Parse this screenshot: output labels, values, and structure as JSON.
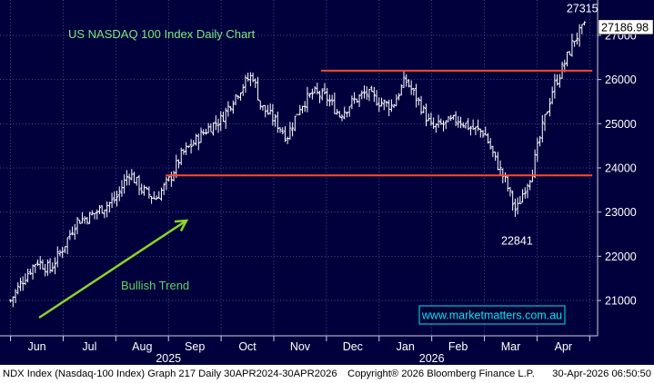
{
  "chart_data": {
    "type": "line",
    "style": "ohlc-bars",
    "title": "US NASDAQ 100 Index Daily Chart",
    "watermark": "www.marketmatters.com.au",
    "ylim": [
      20200,
      27800
    ],
    "y_ticks": [
      "21000",
      "22000",
      "23000",
      "24000",
      "25000",
      "26000",
      "27000"
    ],
    "y_tick_values": [
      21000,
      22000,
      23000,
      24000,
      25000,
      26000,
      27000
    ],
    "y_axis_side": "right",
    "grid": true,
    "month_labels": [
      "Jun",
      "Jul",
      "Aug",
      "Sep",
      "Oct",
      "Nov",
      "Dec",
      "Jan",
      "Feb",
      "Mar",
      "Apr"
    ],
    "month_positions": [
      0.5,
      1.5,
      2.5,
      3.5,
      4.5,
      5.5,
      6.5,
      7.5,
      8.5,
      9.5,
      10.5
    ],
    "year_labels": [
      {
        "label": "2025",
        "position": 3.0
      },
      {
        "label": "2026",
        "position": 8.0
      }
    ],
    "x_range": [
      -0.2,
      11.15
    ],
    "series": [
      {
        "x": [
          0.0,
          0.25,
          0.5,
          0.75,
          1.0,
          1.25,
          1.5,
          1.75,
          2.0,
          2.25,
          2.5,
          2.75,
          3.0,
          3.25,
          3.5,
          3.75,
          4.0,
          4.25,
          4.5,
          4.6,
          4.75,
          5.0,
          5.25,
          5.5,
          5.75,
          6.0,
          6.25,
          6.5,
          6.75,
          7.0,
          7.25,
          7.5,
          7.75,
          8.0,
          8.25,
          8.5,
          8.75,
          9.0,
          9.2,
          9.4,
          9.6,
          9.75,
          9.9,
          10.1,
          10.3,
          10.5,
          10.7,
          10.9
        ],
        "values": [
          21000,
          21500,
          21900,
          21700,
          22200,
          22800,
          22900,
          23100,
          23300,
          23900,
          23500,
          23300,
          23700,
          24300,
          24600,
          24900,
          25100,
          25600,
          26000,
          26100,
          25400,
          25100,
          24700,
          25400,
          25700,
          25600,
          25200,
          25500,
          25700,
          25500,
          25400,
          26000,
          25500,
          24900,
          25000,
          25100,
          24900,
          24800,
          24200,
          23700,
          23000,
          23500,
          23900,
          24900,
          25800,
          26300,
          26900,
          27186.98
        ]
      }
    ],
    "levels": [
      {
        "name": "resistance",
        "value": 26200,
        "x_from": 5.9,
        "x_to": 11.05,
        "color": "#ff4a2a"
      },
      {
        "name": "support",
        "value": 23830,
        "x_from": 2.95,
        "x_to": 11.05,
        "color": "#ff4a2a"
      }
    ],
    "annotations": [
      {
        "text": "27315",
        "value": 27315,
        "x": 10.86
      },
      {
        "text": "22841",
        "value": 22841,
        "x": 9.55
      },
      {
        "text": "Bullish Trend"
      }
    ],
    "last_price": "27186.98",
    "last_value": 27186.98,
    "colors": {
      "background": "#00003d",
      "bars": "#ffffff",
      "levels": "#ff4a2a",
      "trend_arrow": "#8dd42a",
      "title": "#7ee87e",
      "trend_label": "#5fd35f",
      "watermark": "#00e5ff"
    }
  },
  "footer": {
    "left": "NDX Index (Nasdaq-100 Index) Graph 217 Daily 30APR2024-30APR2026",
    "center": "Copyright® 2026 Bloomberg Finance L.P.",
    "right": "30-Apr-2026 06:50:50"
  }
}
